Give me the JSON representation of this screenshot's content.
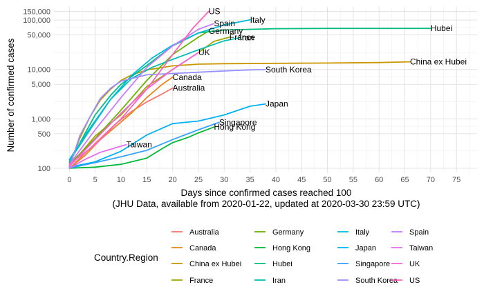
{
  "chart_data": {
    "type": "line",
    "title": "",
    "xlabel": "Days since confirmed cases reached 100",
    "xlabel_note": "(JHU Data, available from 2020-01-22, updated at 2020-03-30 23:59 UTC)",
    "ylabel": "Number of confirmed cases",
    "y_scale": "log",
    "xlim": [
      -3,
      79
    ],
    "ylim": [
      82,
      185000
    ],
    "x_ticks": [
      0,
      5,
      10,
      15,
      20,
      25,
      30,
      35,
      40,
      45,
      50,
      55,
      60,
      65,
      70,
      75
    ],
    "x_tick_labels": [
      "0",
      "5",
      "10",
      "15",
      "20",
      "25",
      "30",
      "35",
      "40",
      "45",
      "50",
      "55",
      "60",
      "65",
      "70",
      "75"
    ],
    "y_ticks": [
      100,
      500,
      1000,
      5000,
      10000,
      50000,
      100000,
      150000
    ],
    "y_tick_labels": [
      "100",
      "500",
      "1,000",
      "5,000",
      "10,000",
      "50,000",
      "100,000",
      "150,000"
    ],
    "grid": true,
    "legend_title": "Country.Region",
    "legend_position": "bottom",
    "series": [
      {
        "name": "Australia",
        "color": "#F8766D",
        "label": "Australia",
        "x": [
          0,
          3,
          6,
          9,
          12,
          15,
          18,
          20
        ],
        "y": [
          100,
          200,
          400,
          800,
          1400,
          2200,
          3200,
          4200
        ]
      },
      {
        "name": "Canada",
        "color": "#E7861B",
        "label": "Canada",
        "x": [
          0,
          3,
          6,
          9,
          12,
          15,
          18,
          20
        ],
        "y": [
          100,
          180,
          380,
          700,
          1300,
          2700,
          5000,
          7000
        ]
      },
      {
        "name": "China ex Hubei",
        "color": "#C99800",
        "label": "China ex Hubei",
        "x": [
          0,
          2,
          4,
          6,
          8,
          10,
          12,
          15,
          20,
          25,
          30,
          40,
          50,
          60,
          66
        ],
        "y": [
          110,
          400,
          1100,
          2400,
          4000,
          6000,
          7700,
          9800,
          11800,
          12800,
          13100,
          13300,
          13500,
          13800,
          14300
        ]
      },
      {
        "name": "France",
        "color": "#A3A500",
        "label": "France",
        "x": [
          0,
          5,
          10,
          15,
          20,
          25,
          28,
          31
        ],
        "y": [
          110,
          450,
          1200,
          4500,
          10000,
          22000,
          37000,
          45000
        ]
      },
      {
        "name": "Germany",
        "color": "#6BB100",
        "label": "Germany",
        "x": [
          0,
          5,
          10,
          15,
          20,
          25,
          27
        ],
        "y": [
          120,
          400,
          1500,
          6000,
          20000,
          45000,
          60000
        ]
      },
      {
        "name": "Hong Kong",
        "color": "#00BA38",
        "label": "Hong Kong",
        "x": [
          0,
          5,
          10,
          15,
          18,
          20,
          23,
          25,
          28
        ],
        "y": [
          100,
          105,
          120,
          160,
          250,
          330,
          420,
          520,
          680
        ]
      },
      {
        "name": "Hubei",
        "color": "#00BF7D",
        "label": "Hubei",
        "x": [
          0,
          3,
          5,
          8,
          10,
          15,
          20,
          25,
          30,
          40,
          50,
          60,
          70
        ],
        "y": [
          130,
          500,
          1200,
          3000,
          5000,
          12000,
          30000,
          55000,
          63000,
          67000,
          67700,
          67800,
          67800
        ]
      },
      {
        "name": "Iran",
        "color": "#00C0B5",
        "label": "Iran",
        "x": [
          0,
          4,
          8,
          12,
          16,
          20,
          25,
          30,
          33
        ],
        "y": [
          140,
          600,
          2500,
          6500,
          11000,
          16000,
          25000,
          38000,
          44000
        ]
      },
      {
        "name": "Italy",
        "color": "#00BCD8",
        "label": "Italy",
        "x": [
          0,
          4,
          8,
          12,
          16,
          20,
          25,
          30,
          35
        ],
        "y": [
          150,
          650,
          2500,
          7500,
          17000,
          31000,
          55000,
          80000,
          101000
        ]
      },
      {
        "name": "Japan",
        "color": "#00B0F6",
        "label": "Japan",
        "x": [
          0,
          5,
          10,
          15,
          20,
          25,
          30,
          35,
          38
        ],
        "y": [
          105,
          135,
          220,
          470,
          800,
          900,
          1200,
          1800,
          2000
        ]
      },
      {
        "name": "Singapore",
        "color": "#35A2FF",
        "label": "Singapore",
        "x": [
          0,
          5,
          10,
          15,
          20,
          25,
          29
        ],
        "y": [
          100,
          130,
          170,
          230,
          380,
          600,
          850
        ]
      },
      {
        "name": "South Korea",
        "color": "#9590FF",
        "label": "South Korea",
        "x": [
          0,
          2,
          4,
          6,
          8,
          10,
          15,
          20,
          25,
          30,
          35,
          38
        ],
        "y": [
          105,
          450,
          1100,
          2600,
          4200,
          5800,
          7800,
          8300,
          8800,
          9300,
          9800,
          9900
        ]
      },
      {
        "name": "Spain",
        "color": "#C77CFF",
        "label": "Spain",
        "x": [
          0,
          5,
          10,
          15,
          20,
          25,
          28
        ],
        "y": [
          120,
          600,
          2700,
          11000,
          30000,
          65000,
          85000
        ]
      },
      {
        "name": "Taiwan",
        "color": "#E76BF3",
        "label": "Taiwan",
        "x": [
          0,
          3,
          6,
          9,
          11
        ],
        "y": [
          100,
          150,
          210,
          260,
          300
        ]
      },
      {
        "name": "UK",
        "color": "#FA62DB",
        "label": "UK",
        "x": [
          0,
          5,
          10,
          15,
          20,
          25
        ],
        "y": [
          110,
          380,
          1300,
          4000,
          10000,
          22000
        ]
      },
      {
        "name": "US",
        "color": "#FF62BC",
        "label": "US",
        "x": [
          0,
          5,
          10,
          15,
          20,
          24,
          27
        ],
        "y": [
          120,
          300,
          1000,
          4000,
          20000,
          70000,
          150000
        ]
      }
    ]
  }
}
